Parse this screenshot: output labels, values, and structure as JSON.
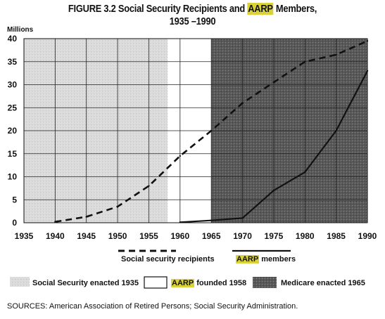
{
  "title_line1_pre": "FIGURE 3.2  Social Security Recipients and ",
  "title_line1_hl": "AARP",
  "title_line1_post": " Members,",
  "title_line2": "1935 –1990",
  "sources_label": "SOURCES:",
  "sources_text": " American Association of Retired Persons; Social Security Administration.",
  "legend": {
    "ss_label": "Social security recipients",
    "aarp_hl": "AARP",
    "aarp_rest": " members"
  },
  "periods": {
    "p1_label": "Social Security enacted 1935",
    "p2_hl": "AARP",
    "p2_rest": " founded 1958",
    "p3_label": "Medicare enacted 1965"
  },
  "colors": {
    "highlight": "#d9d23a",
    "grid": "#222222",
    "light_shade": "#d8d8d8",
    "dark_shade": "#555555"
  },
  "chart_data": {
    "type": "line",
    "ylabel": "Millions",
    "xlabel": "",
    "xlim": [
      1935,
      1990
    ],
    "ylim": [
      0,
      40
    ],
    "x_ticks": [
      1935,
      1940,
      1945,
      1950,
      1955,
      1960,
      1965,
      1970,
      1975,
      1980,
      1985,
      1990
    ],
    "y_ticks": [
      0,
      5,
      10,
      15,
      20,
      25,
      30,
      35,
      40
    ],
    "grid": true,
    "shaded_periods": [
      {
        "start": 1935,
        "end": 1958,
        "shade": "light"
      },
      {
        "start": 1958,
        "end": 1965,
        "shade": "none"
      },
      {
        "start": 1965,
        "end": 1990,
        "shade": "dark"
      }
    ],
    "series": [
      {
        "name": "Social security recipients",
        "style": "dashed",
        "x": [
          1940,
          1945,
          1950,
          1955,
          1960,
          1965,
          1970,
          1975,
          1980,
          1985,
          1990
        ],
        "y": [
          0.2,
          1.3,
          3.5,
          8,
          14.5,
          20,
          26,
          30.5,
          35,
          36.5,
          39.5
        ]
      },
      {
        "name": "AARP members",
        "style": "solid",
        "x": [
          1960,
          1965,
          1970,
          1975,
          1980,
          1985,
          1990
        ],
        "y": [
          0.1,
          0.5,
          1,
          7,
          11,
          20,
          33
        ]
      }
    ]
  }
}
